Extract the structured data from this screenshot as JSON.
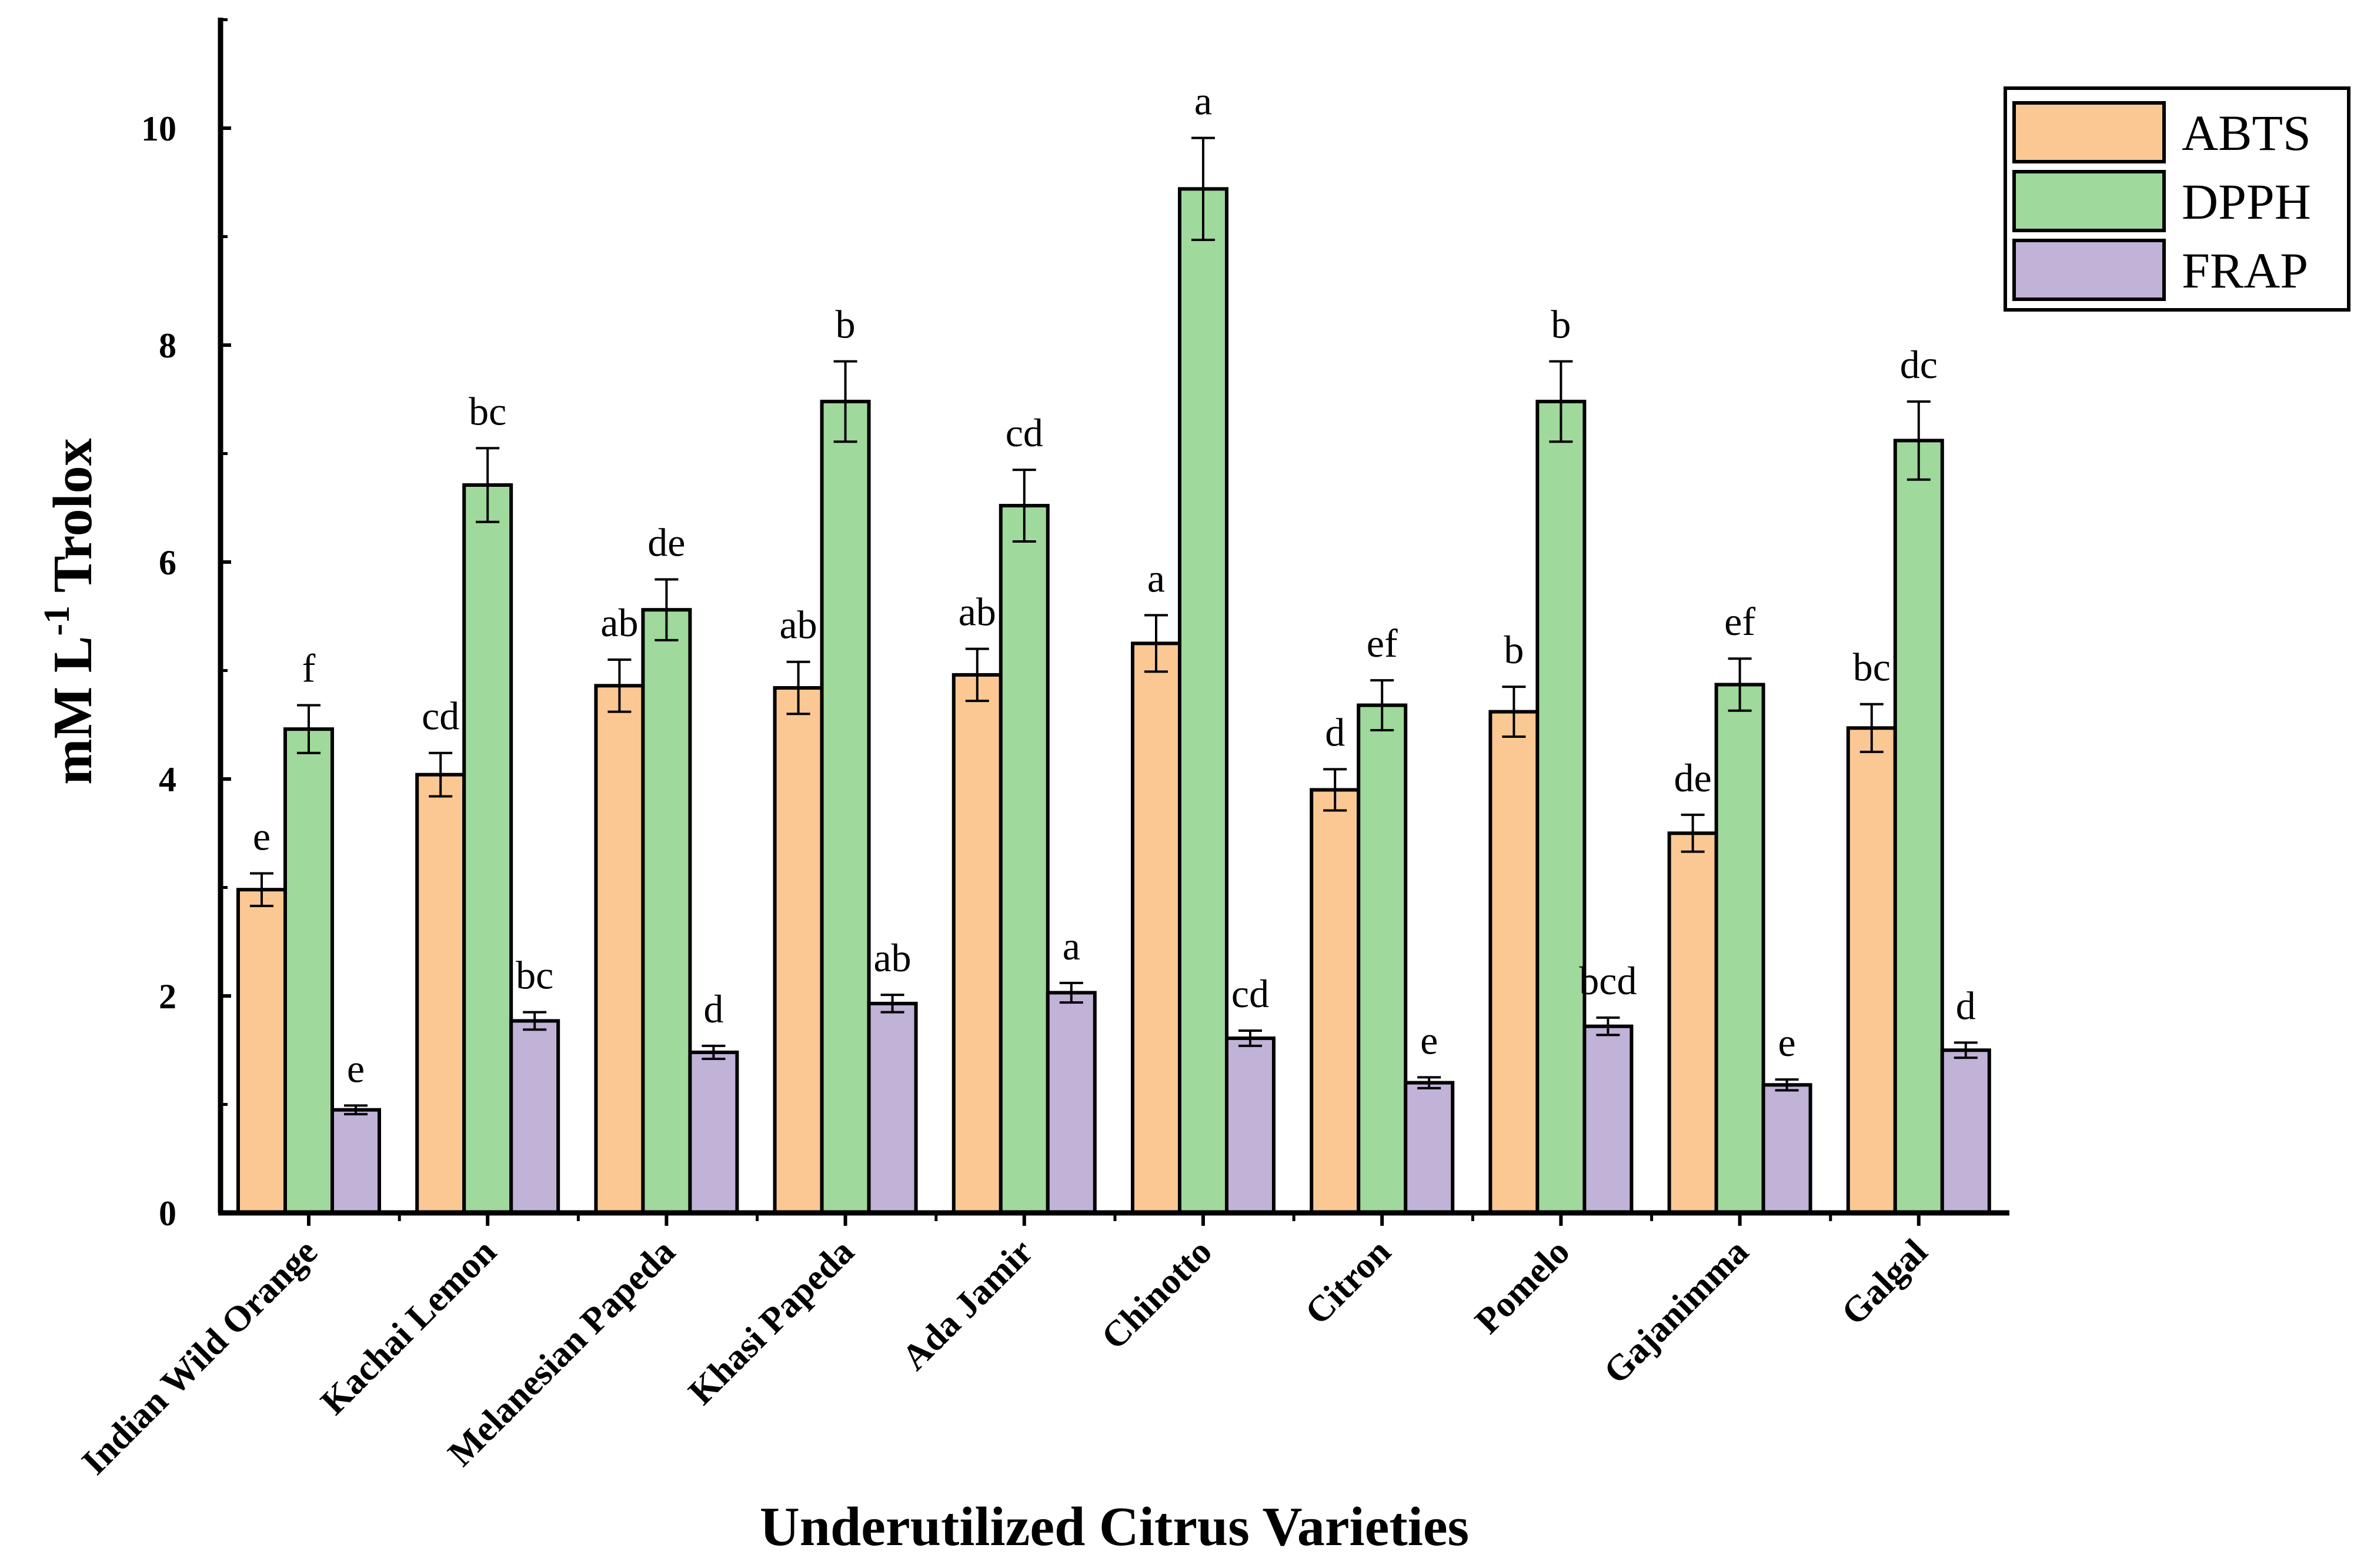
{
  "chart_data": {
    "type": "bar",
    "title": "",
    "xlabel": "Underutilized Citrus Varieties",
    "ylabel": "mM L",
    "ylabel_superscript": "-1",
    "ylabel_suffix": " Trolox",
    "ylim": [
      0,
      11
    ],
    "yticks": [
      "0",
      "2",
      "4",
      "6",
      "8",
      "10"
    ],
    "grid": false,
    "legend_position": "top-right",
    "categories": [
      "Indian Wild Orange",
      "Kachai Lemon",
      "Melanesian Papeda",
      "Khasi Papeda",
      "Ada Jamir",
      "Chinotto",
      "Citron",
      "Pomelo",
      "Gajanimma",
      "Galgal"
    ],
    "series": [
      {
        "name": "ABTS",
        "color": "#fbc893",
        "values": [
          2.98,
          4.04,
          4.86,
          4.84,
          4.96,
          5.25,
          3.9,
          4.62,
          3.5,
          4.47
        ],
        "errors": [
          0.15,
          0.2,
          0.24,
          0.24,
          0.24,
          0.26,
          0.19,
          0.23,
          0.17,
          0.22
        ],
        "significance": [
          "e",
          "cd",
          "ab",
          "ab",
          "ab",
          "a",
          "d",
          "b",
          "de",
          "bc"
        ]
      },
      {
        "name": "DPPH",
        "color": "#9fd99b",
        "values": [
          4.46,
          6.71,
          5.56,
          7.48,
          6.52,
          9.44,
          4.68,
          7.48,
          4.87,
          7.12
        ],
        "errors": [
          0.22,
          0.34,
          0.28,
          0.37,
          0.33,
          0.47,
          0.23,
          0.37,
          0.24,
          0.36
        ],
        "significance": [
          "f",
          "bc",
          "de",
          "b",
          "cd",
          "a",
          "ef",
          "b",
          "ef",
          "dc"
        ]
      },
      {
        "name": "FRAP",
        "color": "#c1b2d8",
        "values": [
          0.95,
          1.77,
          1.48,
          1.93,
          2.03,
          1.61,
          1.2,
          1.72,
          1.18,
          1.5
        ],
        "errors": [
          0.04,
          0.08,
          0.06,
          0.08,
          0.09,
          0.07,
          0.05,
          0.08,
          0.05,
          0.07
        ],
        "significance": [
          "e",
          "bc",
          "d",
          "ab",
          "a",
          "cd",
          "e",
          "bcd",
          "e",
          "d"
        ]
      }
    ]
  }
}
